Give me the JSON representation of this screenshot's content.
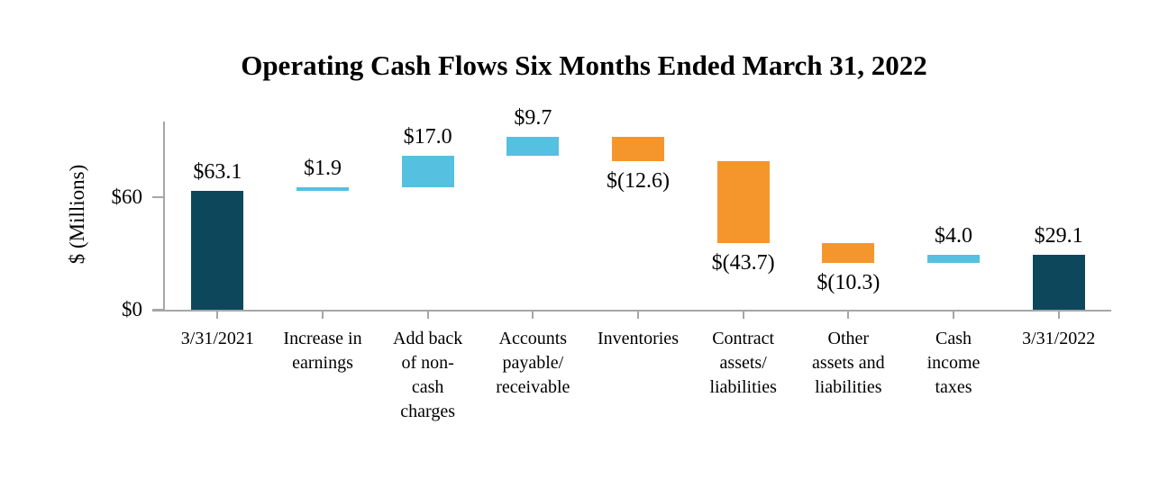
{
  "title": "Operating Cash Flows Six Months Ended March 31, 2022",
  "y_axis": {
    "label": "$ (Millions)",
    "tick_labels": [
      "$0",
      "$60"
    ]
  },
  "chart_data": {
    "type": "bar",
    "subtype": "waterfall",
    "title": "Operating Cash Flows Six Months Ended March 31, 2022",
    "xlabel": "",
    "ylabel": "$ (Millions)",
    "ylim": [
      0,
      100
    ],
    "grid": false,
    "legend": false,
    "yticks": [
      {
        "value": 0,
        "label": "$0"
      },
      {
        "value": 60,
        "label": "$60"
      }
    ],
    "colors": {
      "total": "#0d475c",
      "increase": "#55c0e0",
      "decrease": "#f5962d",
      "axis": "#a6a6a6"
    },
    "categories": [
      "3/31/2021",
      "Increase in earnings",
      "Add back of non-cash charges",
      "Accounts payable/ receivable",
      "Inventories",
      "Contract assets/ liabilities",
      "Other assets and liabilities",
      "Cash income taxes",
      "3/31/2022"
    ],
    "bars": [
      {
        "category": "3/31/2021",
        "category_lines": [
          "3/31/2021"
        ],
        "label": "$63.1",
        "value": 63.1,
        "start": 0.0,
        "end": 63.1,
        "role": "total",
        "label_side": "above"
      },
      {
        "category": "Increase in earnings",
        "category_lines": [
          "Increase in",
          "earnings"
        ],
        "label": "$1.9",
        "value": 1.9,
        "start": 63.1,
        "end": 65.0,
        "role": "increase",
        "label_side": "above"
      },
      {
        "category": "Add back of non-cash charges",
        "category_lines": [
          "Add back",
          "of non-",
          "cash",
          "charges"
        ],
        "label": "$17.0",
        "value": 17.0,
        "start": 65.0,
        "end": 82.0,
        "role": "increase",
        "label_side": "above"
      },
      {
        "category": "Accounts payable/ receivable",
        "category_lines": [
          "Accounts",
          "payable/",
          "receivable"
        ],
        "label": "$9.7",
        "value": 9.7,
        "start": 82.0,
        "end": 91.7,
        "role": "increase",
        "label_side": "above"
      },
      {
        "category": "Inventories",
        "category_lines": [
          "Inventories"
        ],
        "label": "$(12.6)",
        "value": -12.6,
        "start": 91.7,
        "end": 79.1,
        "role": "decrease",
        "label_side": "below"
      },
      {
        "category": "Contract assets/ liabilities",
        "category_lines": [
          "Contract",
          "assets/",
          "liabilities"
        ],
        "label": "$(43.7)",
        "value": -43.7,
        "start": 79.1,
        "end": 35.4,
        "role": "decrease",
        "label_side": "below"
      },
      {
        "category": "Other assets and liabilities",
        "category_lines": [
          "Other",
          "assets and",
          "liabilities"
        ],
        "label": "$(10.3)",
        "value": -10.3,
        "start": 35.4,
        "end": 25.1,
        "role": "decrease",
        "label_side": "below"
      },
      {
        "category": "Cash income taxes",
        "category_lines": [
          "Cash",
          "income",
          "taxes"
        ],
        "label": "$4.0",
        "value": 4.0,
        "start": 25.1,
        "end": 29.1,
        "role": "increase",
        "label_side": "above"
      },
      {
        "category": "3/31/2022",
        "category_lines": [
          "3/31/2022"
        ],
        "label": "$29.1",
        "value": 29.1,
        "start": 0.0,
        "end": 29.1,
        "role": "total",
        "label_side": "above"
      }
    ]
  }
}
